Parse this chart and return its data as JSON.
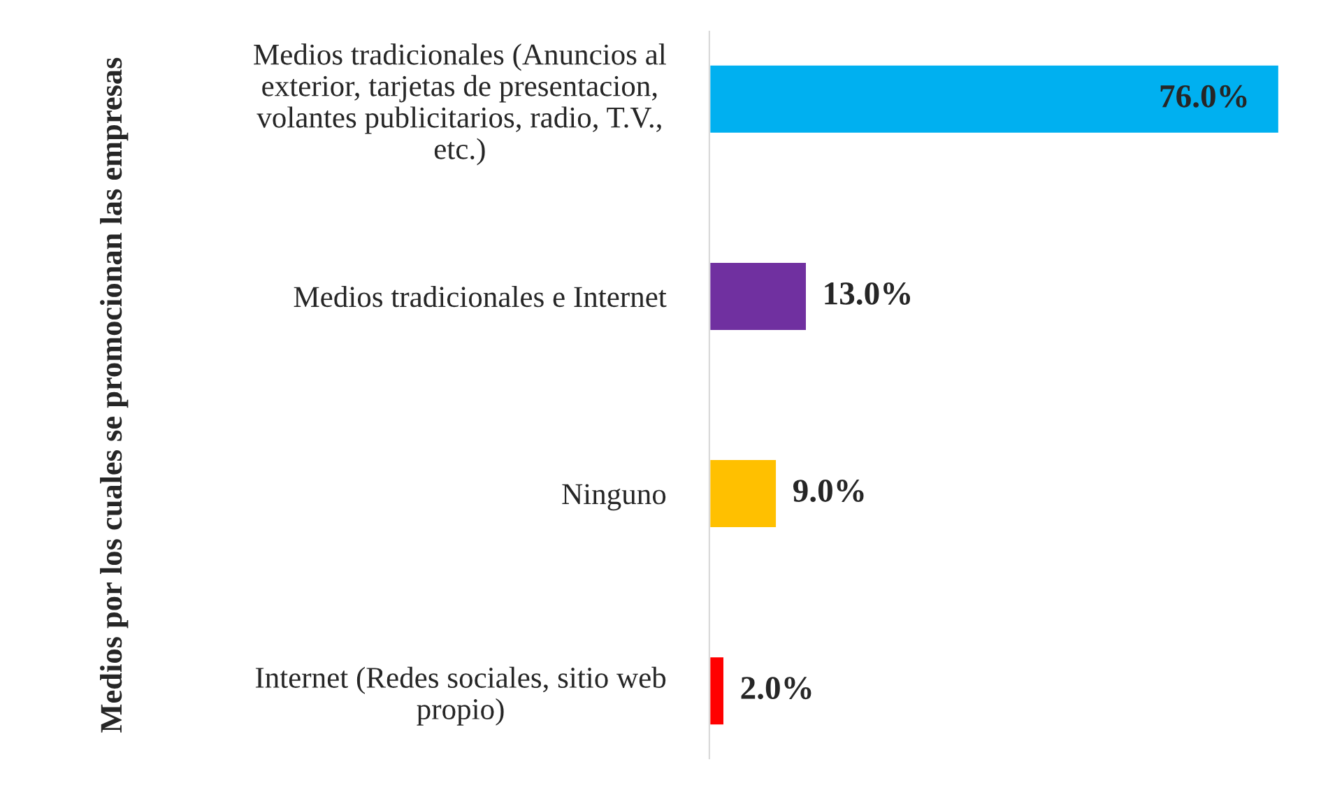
{
  "chart_data": {
    "type": "bar",
    "orientation": "horizontal",
    "ylabel": "Medios por los cuales se promocionan las empresas",
    "categories": [
      "Medios tradicionales (Anuncios al exterior, tarjetas de presentacion, volantes publicitarios, radio, T.V., etc.)",
      "Medios tradicionales e Internet",
      "Ninguno",
      "Internet (Redes sociales, sitio web propio)"
    ],
    "values": [
      76,
      13,
      9,
      2
    ],
    "colors": [
      "#00b0f0",
      "#7030a0",
      "#ffc000",
      "#ff0000"
    ],
    "value_labels": [
      "76.0%",
      "13.0%",
      "9.0%",
      "2.0%"
    ],
    "grid": false,
    "legend": false
  }
}
